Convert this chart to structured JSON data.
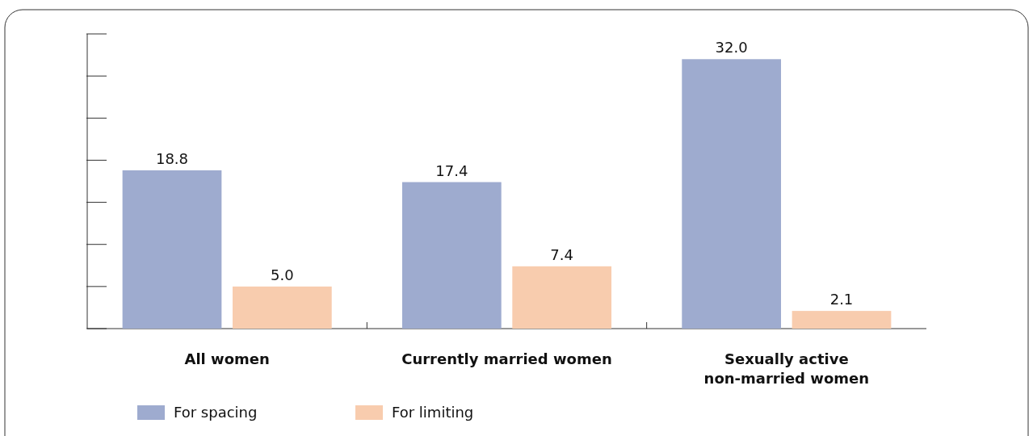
{
  "chart_data": {
    "type": "bar",
    "categories": [
      "All women",
      "Currently married women",
      "Sexually active non-married women"
    ],
    "series": [
      {
        "name": "For spacing",
        "color": "#9eabcf",
        "values": [
          18.8,
          17.4,
          32.0
        ],
        "value_labels": [
          "18.8",
          "17.4",
          "32.0"
        ]
      },
      {
        "name": "For limiting",
        "color": "#f8ccae",
        "values": [
          5.0,
          7.4,
          2.1
        ],
        "value_labels": [
          "5.0",
          "7.4",
          "2.1"
        ]
      }
    ],
    "ylim": [
      0,
      35
    ],
    "tick_labels": "x",
    "legend": "bottom left"
  }
}
